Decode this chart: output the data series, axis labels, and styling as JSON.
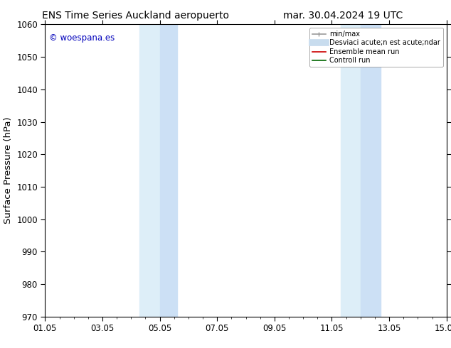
{
  "title_left": "ENS Time Series Auckland aeropuerto",
  "title_right": "mar. 30.04.2024 19 UTC",
  "ylabel": "Surface Pressure (hPa)",
  "ylim": [
    970,
    1060
  ],
  "yticks": [
    970,
    980,
    990,
    1000,
    1010,
    1020,
    1030,
    1040,
    1050,
    1060
  ],
  "xlim_start": 0.0,
  "xlim_end": 14.0,
  "xtick_positions": [
    0,
    2,
    4,
    6,
    8,
    10,
    12,
    14
  ],
  "xtick_labels": [
    "01.05",
    "03.05",
    "05.05",
    "07.05",
    "09.05",
    "11.05",
    "13.05",
    "15.05"
  ],
  "shaded_bands": [
    {
      "x_start": 3.2,
      "x_end": 4.0,
      "color": "#ddeeff"
    },
    {
      "x_start": 4.0,
      "x_end": 4.7,
      "color": "#cce0f5"
    },
    {
      "x_start": 10.2,
      "x_end": 11.0,
      "color": "#ddeeff"
    },
    {
      "x_start": 11.0,
      "x_end": 11.8,
      "color": "#cce0f5"
    }
  ],
  "shaded_color": "#daeaf8",
  "watermark_text": "© woespana.es",
  "watermark_color": "#0000bb",
  "background_color": "#ffffff",
  "legend_entries": [
    {
      "label": "min/max",
      "color": "#999999",
      "lw": 1.2,
      "linestyle": "-"
    },
    {
      "label": "Desviaci acute;n est acute;ndar",
      "color": "#bbccdd",
      "lw": 7,
      "linestyle": "-"
    },
    {
      "label": "Ensemble mean run",
      "color": "#dd0000",
      "lw": 1.2,
      "linestyle": "-"
    },
    {
      "label": "Controll run",
      "color": "#006600",
      "lw": 1.2,
      "linestyle": "-"
    }
  ],
  "title_fontsize": 10,
  "tick_fontsize": 8.5,
  "label_fontsize": 9.5
}
